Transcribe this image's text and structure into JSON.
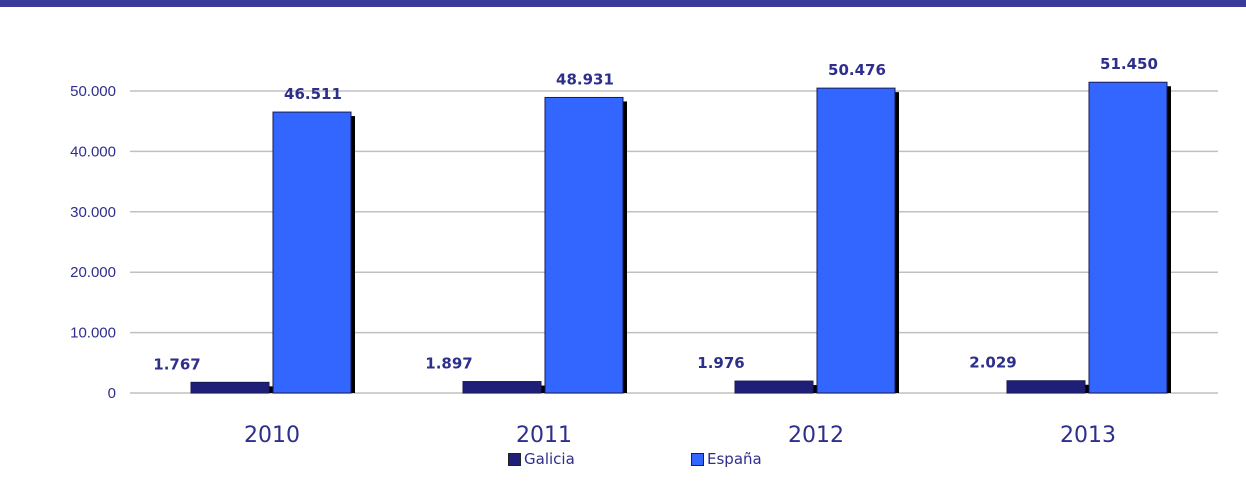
{
  "chart_data": {
    "type": "bar",
    "categories": [
      "2010",
      "2011",
      "2012",
      "2013"
    ],
    "series": [
      {
        "name": "Galicia",
        "values": [
          1767,
          1897,
          1976,
          2029
        ],
        "labels": [
          "1.767",
          "1.897",
          "1.976",
          "2.029"
        ],
        "color": "#1f1f7a"
      },
      {
        "name": "España",
        "values": [
          46511,
          48931,
          50476,
          51450
        ],
        "labels": [
          "46.511",
          "48.931",
          "50.476",
          "51.450"
        ],
        "color": "#3366ff"
      }
    ],
    "y_ticks": [
      0,
      10000,
      20000,
      30000,
      40000,
      50000
    ],
    "y_tick_labels": [
      "0",
      "10.000",
      "20.000",
      "30.000",
      "40.000",
      "50.000"
    ],
    "ylim": [
      0,
      50000
    ],
    "grid": true,
    "legend_placement": "bottom",
    "title": "",
    "xlabel": "",
    "ylabel": ""
  },
  "colors": {
    "top_bar": "#3a3a9a",
    "grid": "#c0c0c0",
    "text": "#2e2e8c",
    "shadow": "#000000"
  }
}
